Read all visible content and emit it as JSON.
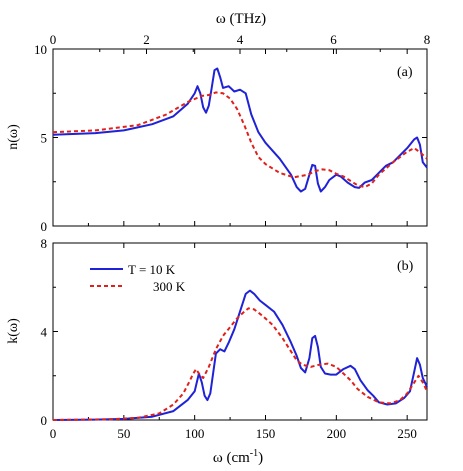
{
  "figure": {
    "top_axis": {
      "label": "ω (THz)",
      "ticks": [
        "0",
        "2",
        "4",
        "6",
        "8"
      ],
      "range": [
        0,
        8
      ]
    },
    "bottom_axis": {
      "label_main": "ω (cm",
      "label_sup": "-1",
      "label_end": ")",
      "ticks": [
        "0",
        "50",
        "100",
        "150",
        "200",
        "250"
      ],
      "range": [
        0,
        264
      ]
    },
    "legend": {
      "entries": [
        "T = 10 K",
        "300 K"
      ]
    },
    "colors": {
      "series_10k": "#1f22d6",
      "series_300k": "#e0201a"
    }
  },
  "chart_data": [
    {
      "type": "line",
      "panel_tag": "(a)",
      "ylabel": "n(ω)",
      "ylim": [
        0,
        10
      ],
      "yticks": [
        "0",
        "5",
        "10"
      ],
      "xlim": [
        0,
        264
      ],
      "series": [
        {
          "name": "T = 10 K",
          "style": "solid",
          "points": [
            [
              0,
              5.15
            ],
            [
              30,
              5.25
            ],
            [
              50,
              5.4
            ],
            [
              70,
              5.75
            ],
            [
              85,
              6.2
            ],
            [
              95,
              6.9
            ],
            [
              100,
              7.5
            ],
            [
              102,
              7.9
            ],
            [
              104,
              7.5
            ],
            [
              106,
              6.7
            ],
            [
              108,
              6.4
            ],
            [
              110,
              6.8
            ],
            [
              112,
              7.8
            ],
            [
              114,
              8.8
            ],
            [
              116,
              8.9
            ],
            [
              118,
              8.4
            ],
            [
              120,
              7.8
            ],
            [
              124,
              7.9
            ],
            [
              128,
              7.6
            ],
            [
              132,
              7.7
            ],
            [
              136,
              7.5
            ],
            [
              140,
              6.3
            ],
            [
              145,
              5.3
            ],
            [
              150,
              4.7
            ],
            [
              160,
              3.8
            ],
            [
              168,
              2.9
            ],
            [
              172,
              2.2
            ],
            [
              175,
              1.95
            ],
            [
              178,
              2.1
            ],
            [
              181,
              2.9
            ],
            [
              183,
              3.45
            ],
            [
              185,
              3.4
            ],
            [
              187,
              2.4
            ],
            [
              189,
              1.95
            ],
            [
              192,
              2.2
            ],
            [
              195,
              2.6
            ],
            [
              200,
              2.9
            ],
            [
              203,
              2.8
            ],
            [
              208,
              2.45
            ],
            [
              213,
              2.2
            ],
            [
              216,
              2.15
            ],
            [
              220,
              2.45
            ],
            [
              225,
              2.6
            ],
            [
              230,
              3.0
            ],
            [
              235,
              3.4
            ],
            [
              240,
              3.6
            ],
            [
              245,
              4.0
            ],
            [
              250,
              4.4
            ],
            [
              255,
              4.9
            ],
            [
              257,
              5.0
            ],
            [
              259,
              4.6
            ],
            [
              261,
              3.6
            ],
            [
              264,
              3.3
            ]
          ]
        },
        {
          "name": "300 K",
          "style": "dashed",
          "points": [
            [
              0,
              5.3
            ],
            [
              30,
              5.4
            ],
            [
              60,
              5.7
            ],
            [
              80,
              6.3
            ],
            [
              95,
              7.0
            ],
            [
              105,
              7.35
            ],
            [
              110,
              7.4
            ],
            [
              115,
              7.55
            ],
            [
              120,
              7.5
            ],
            [
              125,
              7.2
            ],
            [
              130,
              6.6
            ],
            [
              135,
              5.7
            ],
            [
              140,
              4.7
            ],
            [
              145,
              3.9
            ],
            [
              150,
              3.5
            ],
            [
              160,
              3.0
            ],
            [
              170,
              2.75
            ],
            [
              180,
              2.9
            ],
            [
              185,
              3.1
            ],
            [
              190,
              3.2
            ],
            [
              195,
              3.15
            ],
            [
              200,
              2.95
            ],
            [
              205,
              2.8
            ],
            [
              210,
              2.55
            ],
            [
              215,
              2.3
            ],
            [
              220,
              2.2
            ],
            [
              225,
              2.4
            ],
            [
              230,
              2.9
            ],
            [
              240,
              3.6
            ],
            [
              250,
              4.2
            ],
            [
              255,
              4.4
            ],
            [
              260,
              4.1
            ],
            [
              264,
              3.8
            ]
          ]
        }
      ]
    },
    {
      "type": "line",
      "panel_tag": "(b)",
      "ylabel": "k(ω)",
      "ylim": [
        0,
        8
      ],
      "yticks": [
        "0",
        "4",
        "8"
      ],
      "xlim": [
        0,
        264
      ],
      "series": [
        {
          "name": "T = 10 K",
          "style": "solid",
          "points": [
            [
              0,
              0.0
            ],
            [
              30,
              0.02
            ],
            [
              50,
              0.05
            ],
            [
              70,
              0.15
            ],
            [
              85,
              0.4
            ],
            [
              95,
              0.9
            ],
            [
              100,
              1.3
            ],
            [
              103,
              2.1
            ],
            [
              105,
              1.7
            ],
            [
              107,
              1.1
            ],
            [
              109,
              0.9
            ],
            [
              111,
              1.2
            ],
            [
              113,
              2.1
            ],
            [
              115,
              3.0
            ],
            [
              118,
              3.2
            ],
            [
              121,
              3.1
            ],
            [
              124,
              3.5
            ],
            [
              128,
              4.1
            ],
            [
              132,
              4.9
            ],
            [
              136,
              5.7
            ],
            [
              139,
              5.85
            ],
            [
              142,
              5.7
            ],
            [
              146,
              5.4
            ],
            [
              150,
              5.2
            ],
            [
              156,
              4.9
            ],
            [
              162,
              4.3
            ],
            [
              168,
              3.5
            ],
            [
              172,
              2.9
            ],
            [
              175,
              2.35
            ],
            [
              178,
              2.15
            ],
            [
              181,
              2.8
            ],
            [
              183,
              3.7
            ],
            [
              185,
              3.8
            ],
            [
              187,
              3.3
            ],
            [
              189,
              2.4
            ],
            [
              192,
              2.1
            ],
            [
              196,
              2.05
            ],
            [
              200,
              2.05
            ],
            [
              205,
              2.3
            ],
            [
              210,
              2.45
            ],
            [
              213,
              2.3
            ],
            [
              217,
              1.8
            ],
            [
              222,
              1.35
            ],
            [
              226,
              1.1
            ],
            [
              230,
              0.8
            ],
            [
              236,
              0.7
            ],
            [
              242,
              0.75
            ],
            [
              248,
              1.0
            ],
            [
              252,
              1.3
            ],
            [
              255,
              2.2
            ],
            [
              257,
              2.8
            ],
            [
              259,
              2.5
            ],
            [
              261,
              1.9
            ],
            [
              264,
              1.5
            ]
          ]
        },
        {
          "name": "300 K",
          "style": "dashed",
          "points": [
            [
              0,
              0.0
            ],
            [
              40,
              0.03
            ],
            [
              60,
              0.1
            ],
            [
              75,
              0.3
            ],
            [
              85,
              0.7
            ],
            [
              92,
              1.2
            ],
            [
              96,
              1.7
            ],
            [
              99,
              2.1
            ],
            [
              101,
              2.3
            ],
            [
              103,
              2.1
            ],
            [
              106,
              1.9
            ],
            [
              110,
              2.4
            ],
            [
              115,
              3.2
            ],
            [
              120,
              3.8
            ],
            [
              125,
              4.2
            ],
            [
              130,
              4.6
            ],
            [
              135,
              4.9
            ],
            [
              138,
              5.05
            ],
            [
              142,
              5.0
            ],
            [
              148,
              4.7
            ],
            [
              155,
              4.3
            ],
            [
              162,
              3.7
            ],
            [
              168,
              3.1
            ],
            [
              172,
              2.7
            ],
            [
              176,
              2.5
            ],
            [
              182,
              2.4
            ],
            [
              188,
              2.5
            ],
            [
              194,
              2.55
            ],
            [
              200,
              2.4
            ],
            [
              205,
              2.1
            ],
            [
              210,
              1.8
            ],
            [
              215,
              1.4
            ],
            [
              222,
              1.05
            ],
            [
              230,
              0.8
            ],
            [
              238,
              0.75
            ],
            [
              245,
              0.9
            ],
            [
              250,
              1.2
            ],
            [
              255,
              1.7
            ],
            [
              258,
              2.0
            ],
            [
              261,
              1.7
            ],
            [
              264,
              1.3
            ]
          ]
        }
      ]
    }
  ]
}
